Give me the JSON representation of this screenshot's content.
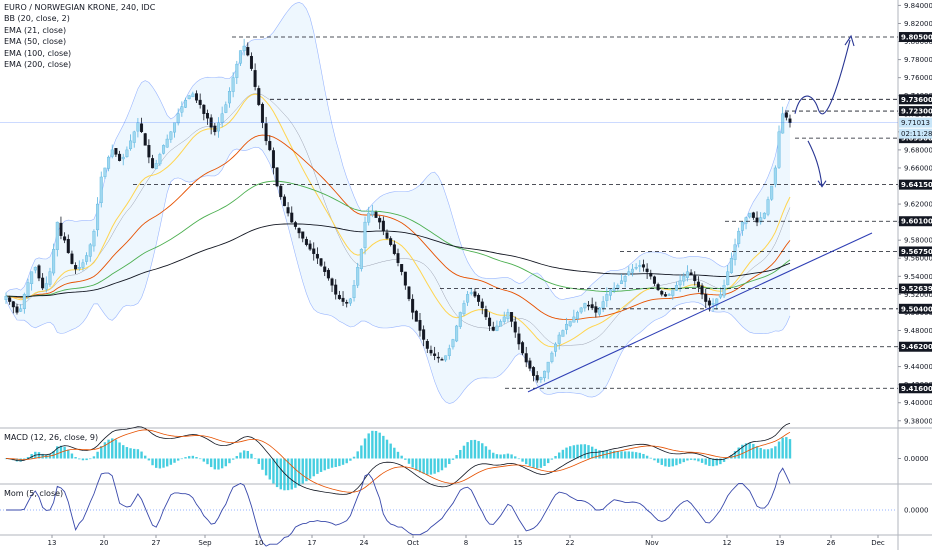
{
  "chart_data": {
    "type": "candlestick",
    "title": "EURO / NORWEGIAN KRONE, 240, IDC",
    "indicators": [
      "BB (20, close, 2)",
      "EMA (21, close)",
      "EMA (50, close)",
      "EMA (100, close)",
      "EMA (200, close)"
    ],
    "price_axis": {
      "ticks": [
        "9.84000",
        "9.82000",
        "9.80000",
        "9.78000",
        "9.76000",
        "9.74000",
        "9.72000",
        "9.70000",
        "9.68000",
        "9.66000",
        "9.64000",
        "9.62000",
        "9.60000",
        "9.58000",
        "9.56000",
        "9.54000",
        "9.52000",
        "9.50000",
        "9.48000",
        "9.46000",
        "9.44000",
        "9.42000",
        "9.40000",
        "9.38000"
      ],
      "ylim": [
        9.372,
        9.846
      ]
    },
    "x_axis": {
      "ticks": [
        "13",
        "20",
        "27",
        "Sep",
        "10",
        "17",
        "24",
        "Oct",
        "8",
        "15",
        "22",
        "Nov",
        "12",
        "19",
        "26",
        "Dec"
      ]
    },
    "horizontal_levels": [
      "9.80500",
      "9.73600",
      "9.72300",
      "9.69300",
      "9.64150",
      "9.60100",
      "9.56750",
      "9.52639",
      "9.50400",
      "9.46200",
      "9.41600"
    ],
    "last_price_label": "9.71013",
    "countdown_label": "02:11:28",
    "trendline": {
      "from": [
        "Oct 12",
        9.412
      ],
      "to": [
        "Nov 22",
        9.588
      ]
    },
    "projection_arrows": {
      "up_target": 9.805,
      "down_target": 9.6415
    },
    "closes": [
      9.518,
      9.512,
      9.506,
      9.5,
      9.504,
      9.52,
      9.533,
      9.545,
      9.55,
      9.538,
      9.527,
      9.532,
      9.545,
      9.57,
      9.6,
      9.585,
      9.58,
      9.566,
      9.554,
      9.548,
      9.55,
      9.555,
      9.563,
      9.575,
      9.59,
      9.62,
      9.65,
      9.66,
      9.672,
      9.68,
      9.675,
      9.668,
      9.672,
      9.68,
      9.69,
      9.7,
      9.71,
      9.7,
      9.685,
      9.672,
      9.66,
      9.665,
      9.675,
      9.685,
      9.692,
      9.7,
      9.71,
      9.72,
      9.728,
      9.735,
      9.74,
      9.742,
      9.735,
      9.73,
      9.72,
      9.715,
      9.705,
      9.7,
      9.71,
      9.72,
      9.73,
      9.745,
      9.76,
      9.775,
      9.79,
      9.795,
      9.785,
      9.77,
      9.75,
      9.73,
      9.71,
      9.69,
      9.68,
      9.66,
      9.64,
      9.628,
      9.618,
      9.61,
      9.6,
      9.595,
      9.588,
      9.582,
      9.575,
      9.57,
      9.565,
      9.56,
      9.552,
      9.545,
      9.538,
      9.53,
      9.52,
      9.515,
      9.512,
      9.51,
      9.515,
      9.53,
      9.55,
      9.57,
      9.6,
      9.61,
      9.612,
      9.605,
      9.6,
      9.59,
      9.582,
      9.575,
      9.565,
      9.555,
      9.545,
      9.53,
      9.515,
      9.5,
      9.49,
      9.48,
      9.47,
      9.46,
      9.455,
      9.452,
      9.45,
      9.448,
      9.452,
      9.46,
      9.47,
      9.485,
      9.5,
      9.51,
      9.52,
      9.522,
      9.518,
      9.512,
      9.505,
      9.495,
      9.485,
      9.48,
      9.485,
      9.49,
      9.495,
      9.5,
      9.49,
      9.478,
      9.465,
      9.455,
      9.445,
      9.438,
      9.43,
      9.425,
      9.428,
      9.435,
      9.445,
      9.455,
      9.465,
      9.475,
      9.48,
      9.487,
      9.49,
      9.495,
      9.5,
      9.505,
      9.51,
      9.508,
      9.505,
      9.5,
      9.505,
      9.512,
      9.52,
      9.525,
      9.527,
      9.53,
      9.535,
      9.54,
      9.545,
      9.548,
      9.55,
      9.552,
      9.55,
      9.545,
      9.54,
      9.532,
      9.525,
      9.52,
      9.518,
      9.52,
      9.525,
      9.53,
      9.535,
      9.54,
      9.545,
      9.542,
      9.535,
      9.528,
      9.52,
      9.512,
      9.508,
      9.51,
      9.515,
      9.52,
      9.53,
      9.545,
      9.56,
      9.575,
      9.59,
      9.6,
      9.605,
      9.61,
      9.605,
      9.6,
      9.605,
      9.61,
      9.625,
      9.64,
      9.66,
      9.7,
      9.72,
      9.716,
      9.71
    ]
  }
}
